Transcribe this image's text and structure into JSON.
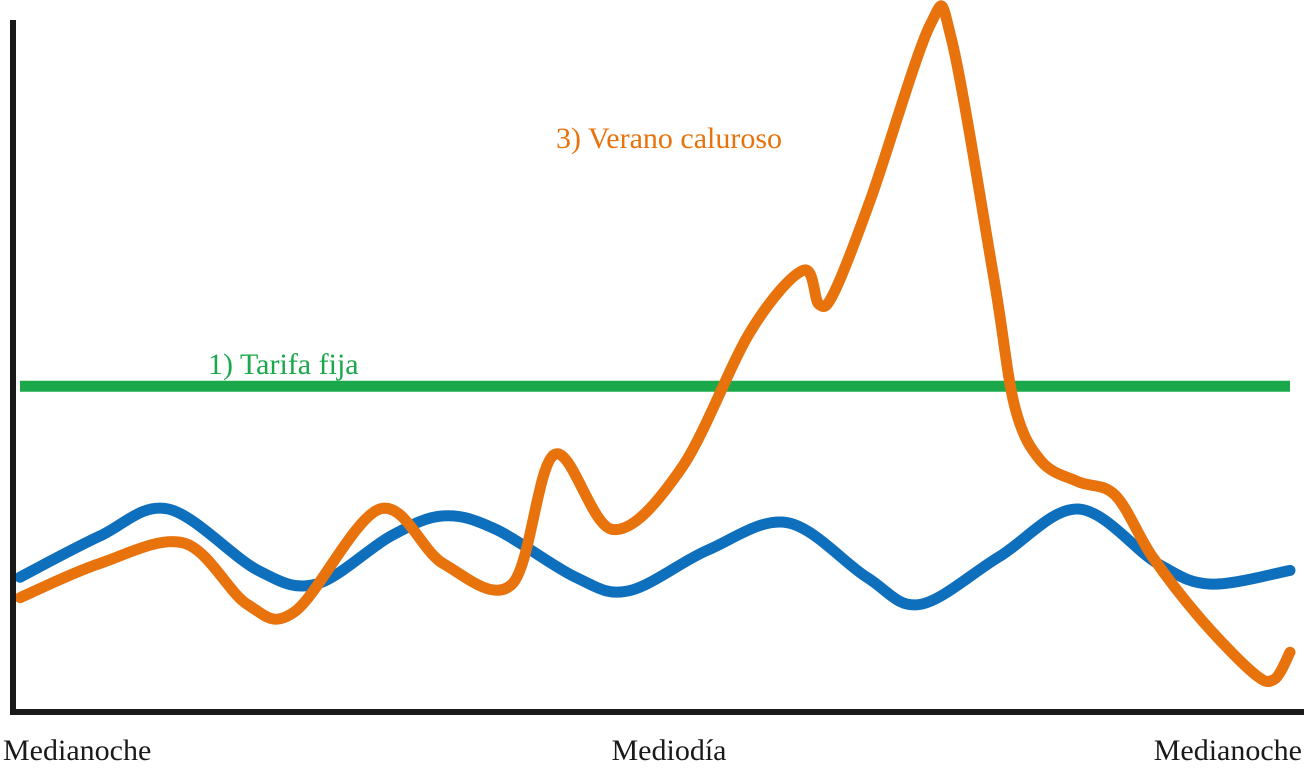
{
  "chart_data": {
    "type": "line",
    "title": "",
    "xlabel": "",
    "ylabel": "",
    "x_tick_labels": [
      "Medianoche",
      "Mediodía",
      "Medianoche"
    ],
    "xlim": [
      0,
      24
    ],
    "ylim": [
      0,
      100
    ],
    "grid": false,
    "series": [
      {
        "name": "1) Tarifa fija",
        "color": "#1aa84a",
        "x": [
          0,
          24
        ],
        "values": [
          46,
          46
        ]
      },
      {
        "name": "",
        "color": "#0e6fbd",
        "x": [
          0,
          1.5,
          2.8,
          4.5,
          5.6,
          7,
          8,
          9,
          10.5,
          11.5,
          13,
          14.5,
          16,
          17,
          18.5,
          20,
          21.5,
          22.5,
          24
        ],
        "values": [
          18,
          24,
          28,
          19,
          17,
          24,
          27,
          25,
          18,
          16,
          22,
          26,
          18,
          14,
          21,
          28,
          20,
          17,
          19
        ]
      },
      {
        "name": "3) Verano caluroso",
        "color": "#e8720c",
        "x": [
          0,
          1.5,
          3.1,
          4.3,
          5.2,
          6.8,
          8,
          9.3,
          10.1,
          11.2,
          12.5,
          13.8,
          14.8,
          15.1,
          15.4,
          16.1,
          17.2,
          17.6,
          18.4,
          18.8,
          19.3,
          20,
          20.7,
          21.4,
          22.3,
          23.3,
          23.7,
          24
        ],
        "values": [
          15,
          20,
          23,
          14,
          13,
          28,
          20,
          17,
          36,
          25,
          34,
          54,
          63,
          58,
          60,
          74,
          99,
          97,
          62,
          43,
          35,
          32,
          30,
          21,
          12,
          4,
          3,
          7
        ]
      }
    ]
  }
}
